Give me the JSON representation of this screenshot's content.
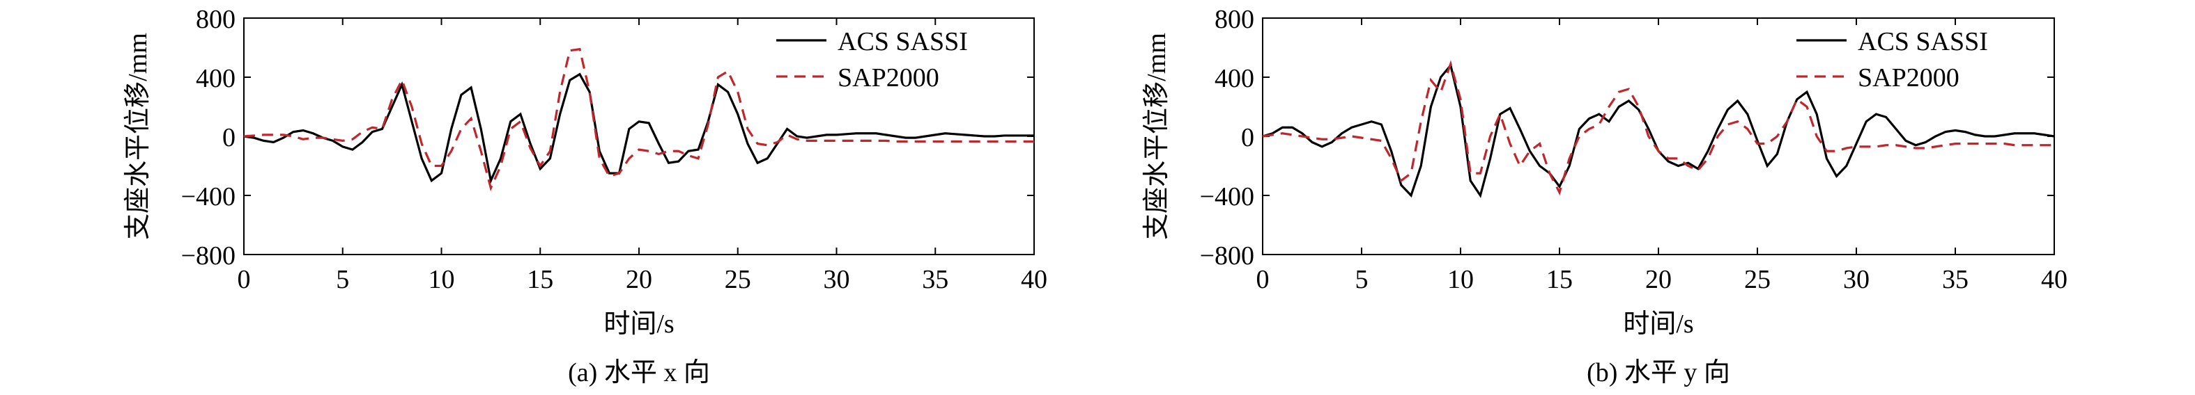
{
  "chart_data": [
    {
      "type": "line",
      "caption": "(a) 水平 x 向",
      "xlabel": "时间/s",
      "ylabel": "支座水平位移/mm",
      "x": [
        0,
        0.5,
        1,
        1.5,
        2,
        2.5,
        3,
        3.5,
        4,
        4.5,
        5,
        5.5,
        6,
        6.5,
        7,
        7.5,
        8,
        8.5,
        9,
        9.5,
        10,
        10.5,
        11,
        11.5,
        12,
        12.5,
        13,
        13.5,
        14,
        14.5,
        15,
        15.5,
        16,
        16.5,
        17,
        17.5,
        18,
        18.5,
        19,
        19.5,
        20,
        20.5,
        21,
        21.5,
        22,
        22.5,
        23,
        23.5,
        24,
        24.5,
        25,
        25.5,
        26,
        26.5,
        27,
        27.5,
        28,
        28.5,
        29,
        29.5,
        30,
        30.5,
        31,
        31.5,
        32,
        32.5,
        33,
        33.5,
        34,
        34.5,
        35,
        35.5,
        36,
        36.5,
        37,
        37.5,
        38,
        38.5,
        39,
        39.5,
        40
      ],
      "series": [
        {
          "name": "ACS SASSI",
          "color": "#000000",
          "dash": false,
          "values": [
            0,
            -10,
            -30,
            -40,
            -10,
            30,
            40,
            20,
            -10,
            -30,
            -70,
            -90,
            -40,
            30,
            50,
            200,
            350,
            100,
            -150,
            -300,
            -250,
            50,
            280,
            330,
            50,
            -300,
            -150,
            100,
            150,
            -50,
            -220,
            -150,
            150,
            380,
            420,
            300,
            -100,
            -250,
            -250,
            50,
            100,
            90,
            -50,
            -180,
            -170,
            -100,
            -90,
            100,
            350,
            300,
            150,
            -50,
            -180,
            -150,
            -50,
            50,
            0,
            -10,
            0,
            10,
            10,
            15,
            20,
            20,
            20,
            10,
            0,
            -10,
            -10,
            0,
            10,
            20,
            15,
            10,
            5,
            0,
            0,
            5,
            5,
            5,
            5
          ]
        },
        {
          "name": "SAP2000",
          "color": "#c0272d",
          "dash": true,
          "values": [
            0,
            5,
            10,
            10,
            10,
            0,
            -20,
            -10,
            -10,
            -20,
            -30,
            -20,
            30,
            60,
            50,
            250,
            380,
            200,
            -50,
            -200,
            -200,
            -100,
            50,
            120,
            -100,
            -350,
            -200,
            50,
            100,
            -80,
            -200,
            -100,
            300,
            580,
            590,
            300,
            -150,
            -270,
            -250,
            -150,
            -90,
            -100,
            -120,
            -100,
            -100,
            -130,
            -150,
            80,
            400,
            440,
            300,
            50,
            -50,
            -60,
            -40,
            10,
            -20,
            -30,
            -30,
            -30,
            -30,
            -30,
            -30,
            -30,
            -30,
            -30,
            -35,
            -35,
            -35,
            -35,
            -35,
            -35,
            -35,
            -35,
            -35,
            -35,
            -35,
            -35,
            -35,
            -35,
            -35
          ]
        }
      ],
      "xlim": [
        0,
        40
      ],
      "xticks": [
        0,
        5,
        10,
        15,
        20,
        25,
        30,
        35,
        40
      ],
      "ylim": [
        -800,
        800
      ],
      "yticks": [
        {
          "value": -800,
          "label": "−800"
        },
        {
          "value": -400,
          "label": "−400"
        },
        0,
        400,
        800
      ],
      "legend": "upper right"
    },
    {
      "type": "line",
      "caption": "(b) 水平 y 向",
      "xlabel": "时间/s",
      "ylabel": "支座水平位移/mm",
      "x": [
        0,
        0.5,
        1,
        1.5,
        2,
        2.5,
        3,
        3.5,
        4,
        4.5,
        5,
        5.5,
        6,
        6.5,
        7,
        7.5,
        8,
        8.5,
        9,
        9.5,
        10,
        10.5,
        11,
        11.5,
        12,
        12.5,
        13,
        13.5,
        14,
        14.5,
        15,
        15.5,
        16,
        16.5,
        17,
        17.5,
        18,
        18.5,
        19,
        19.5,
        20,
        20.5,
        21,
        21.5,
        22,
        22.5,
        23,
        23.5,
        24,
        24.5,
        25,
        25.5,
        26,
        26.5,
        27,
        27.5,
        28,
        28.5,
        29,
        29.5,
        30,
        30.5,
        31,
        31.5,
        32,
        32.5,
        33,
        33.5,
        34,
        34.5,
        35,
        35.5,
        36,
        36.5,
        37,
        37.5,
        38,
        38.5,
        39,
        39.5,
        40
      ],
      "series": [
        {
          "name": "ACS SASSI",
          "color": "#000000",
          "dash": false,
          "values": [
            0,
            20,
            60,
            60,
            20,
            -40,
            -70,
            -40,
            20,
            60,
            80,
            100,
            80,
            -100,
            -330,
            -400,
            -200,
            200,
            400,
            480,
            200,
            -300,
            -400,
            -150,
            150,
            190,
            50,
            -100,
            -200,
            -250,
            -340,
            -200,
            50,
            120,
            150,
            100,
            200,
            240,
            180,
            50,
            -100,
            -170,
            -200,
            -180,
            -220,
            -100,
            50,
            180,
            240,
            150,
            -30,
            -200,
            -120,
            100,
            250,
            300,
            150,
            -150,
            -270,
            -200,
            -50,
            100,
            150,
            130,
            50,
            -30,
            -60,
            -40,
            0,
            30,
            40,
            30,
            10,
            0,
            0,
            10,
            20,
            20,
            20,
            10,
            0
          ]
        },
        {
          "name": "SAP2000",
          "color": "#c0272d",
          "dash": true,
          "values": [
            0,
            10,
            20,
            10,
            0,
            -10,
            -20,
            -20,
            -10,
            0,
            -10,
            -20,
            -30,
            -150,
            -300,
            -250,
            100,
            380,
            300,
            490,
            250,
            -250,
            -250,
            0,
            150,
            -50,
            -200,
            -100,
            -50,
            -250,
            -380,
            -150,
            0,
            50,
            80,
            200,
            300,
            320,
            200,
            0,
            -100,
            -150,
            -150,
            -200,
            -230,
            -150,
            0,
            80,
            100,
            50,
            -50,
            -50,
            0,
            100,
            250,
            200,
            0,
            -100,
            -100,
            -80,
            -70,
            -70,
            -70,
            -60,
            -60,
            -70,
            -80,
            -80,
            -70,
            -60,
            -50,
            -50,
            -50,
            -50,
            -50,
            -50,
            -60,
            -60,
            -60,
            -60,
            -60
          ]
        }
      ],
      "xlim": [
        0,
        40
      ],
      "xticks": [
        0,
        5,
        10,
        15,
        20,
        25,
        30,
        35,
        40
      ],
      "ylim": [
        -800,
        800
      ],
      "yticks": [
        {
          "value": -800,
          "label": "−800"
        },
        {
          "value": -400,
          "label": "−400"
        },
        0,
        400,
        800
      ],
      "legend": "upper right"
    }
  ]
}
